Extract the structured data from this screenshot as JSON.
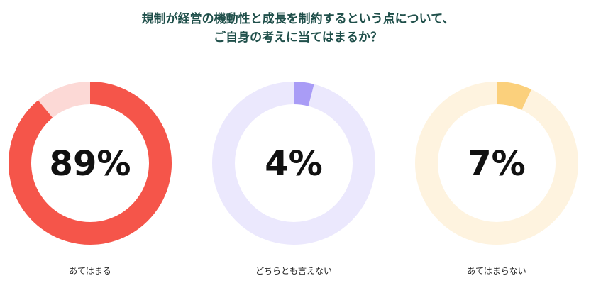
{
  "title": {
    "line1": "規制が経営の機動性と成長を制約するという点について、",
    "line2": "ご自身の考えに当てはまるか？"
  },
  "chart_data": {
    "type": "pie",
    "variant": "donut",
    "categories": [
      "あてはまる",
      "どちらとも言えない",
      "あてはまらない"
    ],
    "values": [
      89,
      4,
      7
    ],
    "value_labels": [
      "89%",
      "4%",
      "7%"
    ],
    "colors": {
      "filled": [
        "#f5554a",
        "#a99cf6",
        "#fbd07c"
      ],
      "track": [
        "#fcd9d6",
        "#ebe8fd",
        "#fef3df"
      ]
    },
    "unit": "%"
  }
}
